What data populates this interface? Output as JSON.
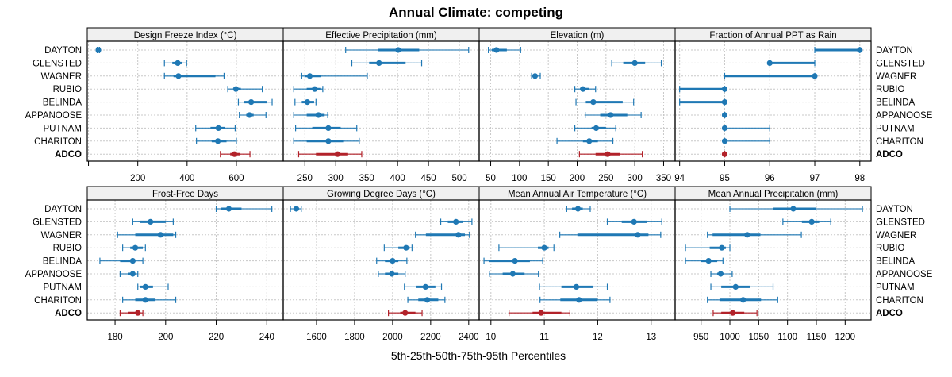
{
  "chart_data": {
    "type": "dotplot-errorbar",
    "title": "Annual Climate: competing",
    "xlabel": "5th-25th-50th-75th-95th Percentiles",
    "legend": "none",
    "grid": true,
    "sites": [
      "DAYTON",
      "GLENSTED",
      "WAGNER",
      "RUBIO",
      "BELINDA",
      "APPANOOSE",
      "PUTNAM",
      "CHARITON",
      "ADCO"
    ],
    "highlight_site": "ADCO",
    "colors": {
      "competing": "#1f78b4",
      "focus": "#b2222a",
      "strip_bg": "#f0f0f0",
      "grid": "#c8c8c8"
    },
    "percentile_keys": [
      "p5",
      "p25",
      "p50",
      "p75",
      "p95"
    ],
    "panels": [
      {
        "title": "Design Freeze Index (°C)",
        "xlim": [
          -5,
          790
        ],
        "ticks": [
          0,
          200,
          400,
          600
        ],
        "tick_labels": [
          "",
          "200",
          "400",
          "600"
        ],
        "values": [
          [
            35,
            38,
            40,
            42,
            45
          ],
          [
            308,
            340,
            362,
            378,
            398
          ],
          [
            308,
            345,
            365,
            515,
            550
          ],
          [
            565,
            590,
            598,
            618,
            705
          ],
          [
            608,
            630,
            660,
            725,
            745
          ],
          [
            612,
            640,
            653,
            670,
            720
          ],
          [
            435,
            495,
            527,
            555,
            595
          ],
          [
            438,
            500,
            525,
            560,
            600
          ],
          [
            535,
            575,
            592,
            615,
            655
          ]
        ]
      },
      {
        "title": "Effective Precipitation (mm)",
        "xlim": [
          215,
          532
        ],
        "ticks": [
          250,
          300,
          350,
          400,
          450,
          500
        ],
        "tick_labels": [
          "250",
          "300",
          "350",
          "400",
          "450",
          "500"
        ],
        "values": [
          [
            316,
            368,
            401,
            435,
            515
          ],
          [
            326,
            354,
            370,
            413,
            439
          ],
          [
            245,
            250,
            258,
            276,
            351
          ],
          [
            232,
            253,
            266,
            275,
            279
          ],
          [
            234,
            245,
            254,
            265,
            268
          ],
          [
            232,
            253,
            272,
            282,
            287
          ],
          [
            235,
            262,
            288,
            308,
            334
          ],
          [
            232,
            253,
            288,
            312,
            338
          ],
          [
            240,
            268,
            303,
            320,
            342
          ]
        ]
      },
      {
        "title": "Elevation (m)",
        "xlim": [
          30,
          370
        ],
        "ticks": [
          50,
          100,
          150,
          200,
          250,
          300,
          350
        ],
        "tick_labels": [
          "50",
          "100",
          "150",
          "200",
          "250",
          "300",
          "350"
        ],
        "values": [
          [
            46,
            52,
            60,
            78,
            102
          ],
          [
            260,
            280,
            300,
            318,
            346
          ],
          [
            121,
            124,
            127,
            130,
            136
          ],
          [
            196,
            205,
            210,
            220,
            232
          ],
          [
            198,
            215,
            228,
            279,
            298
          ],
          [
            214,
            240,
            258,
            287,
            311
          ],
          [
            196,
            225,
            233,
            250,
            267
          ],
          [
            165,
            210,
            221,
            236,
            262
          ],
          [
            204,
            232,
            253,
            275,
            313
          ]
        ]
      },
      {
        "title": "Fraction of Annual PPT as Rain",
        "xlim": [
          93.9,
          98.25
        ],
        "ticks": [
          94,
          95,
          96,
          97,
          98
        ],
        "tick_labels": [
          "94",
          "95",
          "96",
          "97",
          "98"
        ],
        "values": [
          [
            97,
            97,
            98,
            98,
            98
          ],
          [
            96,
            96,
            96,
            97,
            97
          ],
          [
            95,
            95,
            97,
            97,
            97
          ],
          [
            94,
            94,
            95,
            95,
            95
          ],
          [
            94,
            94,
            95,
            95,
            95
          ],
          [
            95,
            95,
            95,
            95,
            95
          ],
          [
            95,
            95,
            95,
            95,
            96
          ],
          [
            95,
            95,
            95,
            95,
            96
          ],
          [
            95,
            95,
            95,
            95,
            95
          ]
        ]
      },
      {
        "title": "Frost-Free Days",
        "xlim": [
          169,
          246.5
        ],
        "ticks": [
          180,
          200,
          220,
          240
        ],
        "tick_labels": [
          "180",
          "200",
          "220",
          "240"
        ],
        "values": [
          [
            220,
            222,
            225,
            230,
            242
          ],
          [
            187,
            190,
            194,
            200,
            203
          ],
          [
            181,
            188,
            198,
            203,
            204
          ],
          [
            183,
            186,
            188,
            191,
            192
          ],
          [
            174,
            182,
            187,
            188,
            191
          ],
          [
            182,
            185,
            187,
            188,
            189
          ],
          [
            189,
            190,
            192,
            195,
            201
          ],
          [
            183,
            188,
            192,
            196,
            204
          ],
          [
            182,
            185,
            189,
            190,
            191
          ]
        ]
      },
      {
        "title": "Growing Degree Days (°C)",
        "xlim": [
          1425,
          2455
        ],
        "ticks": [
          1600,
          1800,
          2000,
          2200,
          2400
        ],
        "tick_labels": [
          "1600",
          "1800",
          "2000",
          "2200",
          "2400"
        ],
        "values": [
          [
            1463,
            1480,
            1494,
            1505,
            1520
          ],
          [
            2253,
            2290,
            2333,
            2370,
            2417
          ],
          [
            2120,
            2175,
            2346,
            2380,
            2404
          ],
          [
            1956,
            2030,
            2071,
            2090,
            2102
          ],
          [
            1916,
            1960,
            2000,
            2030,
            2075
          ],
          [
            1925,
            1960,
            1996,
            2030,
            2066
          ],
          [
            2062,
            2125,
            2173,
            2225,
            2257
          ],
          [
            2080,
            2135,
            2182,
            2240,
            2275
          ],
          [
            1978,
            2040,
            2066,
            2120,
            2155
          ]
        ]
      },
      {
        "title": "Mean Annual Air Temperature (°C)",
        "xlim": [
          9.78,
          13.45
        ],
        "ticks": [
          10,
          11,
          12,
          13
        ],
        "tick_labels": [
          "10",
          "11",
          "12",
          "13"
        ],
        "values": [
          [
            11.42,
            11.52,
            11.63,
            11.72,
            11.86
          ],
          [
            12.18,
            12.45,
            12.68,
            12.92,
            13.2
          ],
          [
            11.29,
            11.62,
            12.75,
            12.95,
            13.18
          ],
          [
            10.15,
            10.88,
            11.0,
            11.08,
            11.18
          ],
          [
            9.87,
            9.97,
            10.45,
            10.73,
            10.97
          ],
          [
            9.97,
            10.22,
            10.41,
            10.63,
            10.89
          ],
          [
            10.91,
            11.32,
            11.6,
            11.92,
            12.18
          ],
          [
            10.92,
            11.3,
            11.65,
            12.0,
            12.23
          ],
          [
            10.34,
            10.78,
            10.94,
            11.32,
            11.48
          ]
        ]
      },
      {
        "title": "Mean Annual Precipitation (mm)",
        "xlim": [
          905,
          1245
        ],
        "ticks": [
          950,
          1000,
          1050,
          1100,
          1150,
          1200
        ],
        "tick_labels": [
          "950",
          "1000",
          "1050",
          "1100",
          "1150",
          "1200"
        ],
        "values": [
          [
            1000,
            1075,
            1110,
            1150,
            1230
          ],
          [
            1092,
            1125,
            1142,
            1155,
            1175
          ],
          [
            961,
            970,
            1030,
            1053,
            1124
          ],
          [
            923,
            965,
            986,
            993,
            1000
          ],
          [
            923,
            950,
            963,
            978,
            988
          ],
          [
            967,
            978,
            984,
            990,
            1004
          ],
          [
            967,
            985,
            1010,
            1035,
            1075
          ],
          [
            961,
            982,
            1023,
            1054,
            1083
          ],
          [
            971,
            985,
            1005,
            1025,
            1047
          ]
        ]
      }
    ]
  }
}
